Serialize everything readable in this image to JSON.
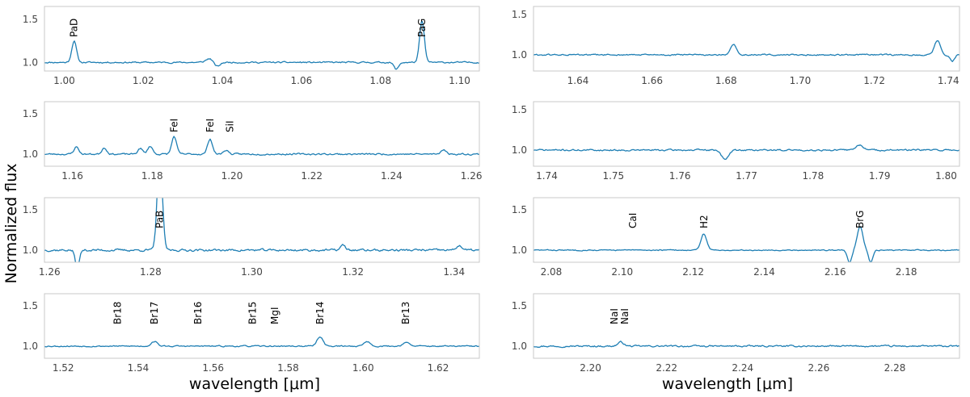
{
  "figure": {
    "ylabel": "Normalized flux",
    "xlabel_left": "wavelength [$\\mu$m]",
    "xlabel_right": "wavelength [$\\mu$m]",
    "line_color": "#1f7fb4"
  },
  "chart_data": [
    {
      "type": "line",
      "column": "left",
      "row": 0,
      "xlim": [
        0.995,
        1.105
      ],
      "ylim": [
        0.9,
        1.65
      ],
      "xticks": [
        1.0,
        1.02,
        1.04,
        1.06,
        1.08,
        1.1
      ],
      "xtick_labels": [
        "1.00",
        "1.02",
        "1.04",
        "1.06",
        "1.08",
        "1.10"
      ],
      "yticks": [
        1.0,
        1.5
      ],
      "ytick_labels": [
        "1.0",
        "1.5"
      ],
      "lines": [
        {
          "label": "PaD",
          "x": 1.0025
        },
        {
          "label": "PaG",
          "x": 1.0905
        }
      ],
      "features": [
        {
          "x": 1.0025,
          "h": 0.25,
          "w": 0.0006
        },
        {
          "x": 1.037,
          "h": 0.05,
          "w": 0.001
        },
        {
          "x": 1.0385,
          "h": -0.06,
          "w": 0.0008
        },
        {
          "x": 1.084,
          "h": -0.08,
          "w": 0.0006
        },
        {
          "x": 1.0905,
          "h": 0.48,
          "w": 0.0006
        }
      ],
      "noise": 0.015,
      "seed": 11
    },
    {
      "type": "line",
      "column": "left",
      "row": 1,
      "xlim": [
        1.153,
        1.262
      ],
      "ylim": [
        0.85,
        1.65
      ],
      "xticks": [
        1.16,
        1.18,
        1.2,
        1.22,
        1.24,
        1.26
      ],
      "xtick_labels": [
        "1.16",
        "1.18",
        "1.20",
        "1.22",
        "1.24",
        "1.26"
      ],
      "yticks": [
        1.0,
        1.5
      ],
      "ytick_labels": [
        "1.0",
        "1.5"
      ],
      "lines": [
        {
          "label": "FeI",
          "x": 1.1855
        },
        {
          "label": "FeI",
          "x": 1.1945
        },
        {
          "label": "SiI",
          "x": 1.1995
        }
      ],
      "features": [
        {
          "x": 1.161,
          "h": 0.09,
          "w": 0.0006
        },
        {
          "x": 1.168,
          "h": 0.08,
          "w": 0.0006
        },
        {
          "x": 1.177,
          "h": 0.07,
          "w": 0.0006
        },
        {
          "x": 1.1795,
          "h": 0.1,
          "w": 0.0006
        },
        {
          "x": 1.1855,
          "h": 0.22,
          "w": 0.0006
        },
        {
          "x": 1.1945,
          "h": 0.19,
          "w": 0.0006
        },
        {
          "x": 1.1985,
          "h": 0.05,
          "w": 0.0006
        },
        {
          "x": 1.253,
          "h": 0.06,
          "w": 0.0006
        }
      ],
      "noise": 0.018,
      "seed": 23
    },
    {
      "type": "line",
      "column": "left",
      "row": 2,
      "xlim": [
        1.259,
        1.345
      ],
      "ylim": [
        0.85,
        1.65
      ],
      "xticks": [
        1.26,
        1.28,
        1.3,
        1.32,
        1.34
      ],
      "xtick_labels": [
        "1.26",
        "1.28",
        "1.30",
        "1.32",
        "1.34"
      ],
      "yticks": [
        1.0,
        1.5
      ],
      "ytick_labels": [
        "1.0",
        "1.5"
      ],
      "lines": [
        {
          "label": "PaB",
          "x": 1.2818
        }
      ],
      "features": [
        {
          "x": 1.2818,
          "h": 1.2,
          "w": 0.0005
        },
        {
          "x": 1.2655,
          "h": -0.22,
          "w": 0.0004
        },
        {
          "x": 1.318,
          "h": 0.06,
          "w": 0.0005
        },
        {
          "x": 1.341,
          "h": 0.06,
          "w": 0.0005
        }
      ],
      "noise": 0.025,
      "seed": 37
    },
    {
      "type": "line",
      "column": "left",
      "row": 3,
      "xlim": [
        1.515,
        1.631
      ],
      "ylim": [
        0.85,
        1.65
      ],
      "xticks": [
        1.52,
        1.54,
        1.56,
        1.58,
        1.6,
        1.62
      ],
      "xtick_labels": [
        "1.52",
        "1.54",
        "1.56",
        "1.58",
        "1.60",
        "1.62"
      ],
      "yticks": [
        1.0,
        1.5
      ],
      "ytick_labels": [
        "1.0",
        "1.5"
      ],
      "lines": [
        {
          "label": "Br18",
          "x": 1.5345
        },
        {
          "label": "Br17",
          "x": 1.5443
        },
        {
          "label": "Br16",
          "x": 1.556
        },
        {
          "label": "Br15",
          "x": 1.5705
        },
        {
          "label": "MgI",
          "x": 1.5765
        },
        {
          "label": "Br14",
          "x": 1.5885
        },
        {
          "label": "Br13",
          "x": 1.6114
        }
      ],
      "features": [
        {
          "x": 1.5443,
          "h": 0.06,
          "w": 0.0008
        },
        {
          "x": 1.5885,
          "h": 0.12,
          "w": 0.0008
        },
        {
          "x": 1.601,
          "h": 0.06,
          "w": 0.0008
        },
        {
          "x": 1.6114,
          "h": 0.05,
          "w": 0.0008
        }
      ],
      "noise": 0.014,
      "seed": 53
    },
    {
      "type": "line",
      "column": "right",
      "row": 0,
      "xlim": [
        1.628,
        1.743
      ],
      "ylim": [
        0.8,
        1.6
      ],
      "xticks": [
        1.64,
        1.66,
        1.68,
        1.7,
        1.72,
        1.74
      ],
      "xtick_labels": [
        "1.64",
        "1.66",
        "1.68",
        "1.70",
        "1.72",
        "1.74"
      ],
      "yticks": [
        1.0,
        1.5
      ],
      "ytick_labels": [
        "1.0",
        "1.5"
      ],
      "lines": [],
      "features": [
        {
          "x": 1.682,
          "h": 0.12,
          "w": 0.0008
        },
        {
          "x": 1.737,
          "h": 0.18,
          "w": 0.0008
        },
        {
          "x": 1.741,
          "h": -0.08,
          "w": 0.0006
        }
      ],
      "noise": 0.016,
      "seed": 61
    },
    {
      "type": "line",
      "column": "right",
      "row": 1,
      "xlim": [
        1.738,
        1.802
      ],
      "ylim": [
        0.8,
        1.6
      ],
      "xticks": [
        1.74,
        1.75,
        1.76,
        1.77,
        1.78,
        1.79,
        1.8
      ],
      "xtick_labels": [
        "1.74",
        "1.75",
        "1.76",
        "1.77",
        "1.78",
        "1.79",
        "1.80"
      ],
      "yticks": [
        1.0,
        1.5
      ],
      "ytick_labels": [
        "1.0",
        "1.5"
      ],
      "lines": [],
      "features": [
        {
          "x": 1.7668,
          "h": -0.12,
          "w": 0.0005
        },
        {
          "x": 1.787,
          "h": 0.06,
          "w": 0.0006
        }
      ],
      "noise": 0.018,
      "seed": 71
    },
    {
      "type": "line",
      "column": "right",
      "row": 2,
      "xlim": [
        2.075,
        2.195
      ],
      "ylim": [
        0.85,
        1.65
      ],
      "xticks": [
        2.08,
        2.1,
        2.12,
        2.14,
        2.16,
        2.18
      ],
      "xtick_labels": [
        "2.08",
        "2.10",
        "2.12",
        "2.14",
        "2.16",
        "2.18"
      ],
      "yticks": [
        1.0,
        1.5
      ],
      "ytick_labels": [
        "1.0",
        "1.5"
      ],
      "lines": [
        {
          "label": "CaI",
          "x": 2.103
        },
        {
          "label": "H2",
          "x": 2.123
        },
        {
          "label": "BrG",
          "x": 2.167
        }
      ],
      "features": [
        {
          "x": 2.123,
          "h": 0.2,
          "w": 0.0008
        },
        {
          "x": 2.167,
          "h": 0.3,
          "w": 0.0008
        },
        {
          "x": 2.164,
          "h": -0.15,
          "w": 0.0006
        },
        {
          "x": 2.17,
          "h": -0.15,
          "w": 0.0006
        }
      ],
      "noise": 0.012,
      "seed": 83
    },
    {
      "type": "line",
      "column": "right",
      "row": 3,
      "xlim": [
        2.185,
        2.297
      ],
      "ylim": [
        0.85,
        1.65
      ],
      "xticks": [
        2.2,
        2.22,
        2.24,
        2.26,
        2.28
      ],
      "xtick_labels": [
        "2.20",
        "2.22",
        "2.24",
        "2.26",
        "2.28"
      ],
      "yticks": [
        1.0,
        1.5
      ],
      "ytick_labels": [
        "1.0",
        "1.5"
      ],
      "lines": [
        {
          "label": "NaI",
          "x": 2.2062
        },
        {
          "label": "NaI",
          "x": 2.209
        }
      ],
      "features": [
        {
          "x": 2.208,
          "h": 0.05,
          "w": 0.0008
        }
      ],
      "noise": 0.018,
      "seed": 97
    }
  ]
}
